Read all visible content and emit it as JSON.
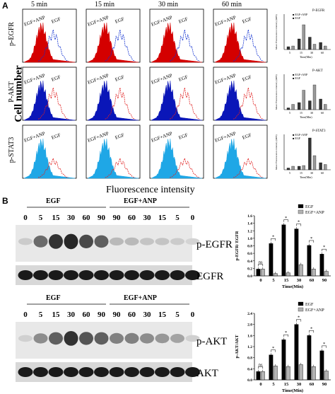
{
  "panel_labels": {
    "a": "A",
    "b": "B"
  },
  "panel_a": {
    "time_labels": [
      "5 min",
      "15 min",
      "30 min",
      "60 min"
    ],
    "row_labels": [
      "p-EGFR",
      "P-AKT",
      "p-STAT3"
    ],
    "y_axis_title": "Cell number",
    "x_axis_title": "Fluorescence intensity",
    "curve_labels": {
      "combo": "EGF+ANP",
      "egf": "EGF"
    },
    "colors": {
      "red": "#d40000",
      "blue": "#0a16b8",
      "cyan": "#1fa7e6",
      "egf_red": "#e02020",
      "egf_blue": "#1030d0"
    },
    "mini_charts": [
      {
        "title": "P-EGFR",
        "legend": [
          "EGF+ANP",
          "EGF"
        ],
        "ylabel": "Mean Fluorescence intensity (MFI)",
        "xlabel": "Time(Min)",
        "ticks": [
          "5",
          "15",
          "30",
          "60"
        ]
      },
      {
        "title": "P-AKT",
        "legend": [
          "EGF+ANP",
          "EGF"
        ],
        "ylabel": "Mean Fluorescence intensity (MFI)",
        "xlabel": "Time(Min)",
        "ticks": [
          "5",
          "15",
          "30",
          "60"
        ]
      },
      {
        "title": "P-STAT3",
        "legend": [
          "EGF+ANP",
          "EGF"
        ],
        "ylabel": "Mean Fluorescence intensity (MFI)",
        "xlabel": "Time(Min)",
        "ticks": [
          "5",
          "15",
          "30",
          "60"
        ]
      }
    ]
  },
  "panel_b": {
    "blot1": {
      "group_labels": [
        "EGF",
        "EGF+ANP"
      ],
      "lanes": [
        "0",
        "5",
        "15",
        "30",
        "60",
        "90",
        "90",
        "60",
        "30",
        "15",
        "5",
        "0"
      ],
      "row_labels": [
        "p-EGFR",
        "EGFR"
      ],
      "top_band": [
        0.12,
        0.55,
        0.8,
        0.85,
        0.7,
        0.6,
        0.2,
        0.2,
        0.15,
        0.15,
        0.12,
        0.08
      ],
      "bottom_band": [
        0.85,
        0.85,
        0.85,
        0.85,
        0.85,
        0.85,
        0.85,
        0.85,
        0.85,
        0.85,
        0.85,
        0.85
      ]
    },
    "blot2": {
      "group_labels": [
        "EGF",
        "EGF+ANP"
      ],
      "lanes": [
        "0",
        "5",
        "15",
        "30",
        "60",
        "90",
        "90",
        "60",
        "30",
        "15",
        "5",
        "0"
      ],
      "row_labels": [
        "p-AKT",
        "AKT"
      ],
      "top_band": [
        0.1,
        0.4,
        0.6,
        0.8,
        0.65,
        0.6,
        0.45,
        0.45,
        0.4,
        0.35,
        0.3,
        0.1
      ],
      "bottom_band": [
        0.85,
        0.85,
        0.85,
        0.85,
        0.85,
        0.85,
        0.85,
        0.85,
        0.85,
        0.85,
        0.85,
        0.85
      ]
    }
  },
  "chart_data": [
    {
      "type": "bar",
      "title": "",
      "ylabel": "p-EGFR/ EGFR",
      "xlabel": "Time(Min)",
      "categories": [
        "0",
        "5",
        "15",
        "30",
        "60",
        "90"
      ],
      "ylim": [
        0,
        1.6
      ],
      "yticks": [
        "0.0",
        "0.2",
        "0.4",
        "0.6",
        "0.8",
        "1.0",
        "1.2",
        "1.4",
        "1.6"
      ],
      "legend": "top-right",
      "series": [
        {
          "name": "EGF",
          "values": [
            0.18,
            0.86,
            1.36,
            1.25,
            0.81,
            0.58
          ],
          "color": "#000000"
        },
        {
          "name": "EGF+ANP",
          "values": [
            0.18,
            0.06,
            0.08,
            0.3,
            0.18,
            0.12
          ],
          "color": "#b3b3b3"
        }
      ],
      "annotations": [
        "ns",
        "*",
        "*",
        "*",
        "*",
        "*"
      ]
    },
    {
      "type": "bar",
      "title": "",
      "ylabel": "p-AKT/AKT",
      "xlabel": "Time(Min)",
      "categories": [
        "0",
        "5",
        "15",
        "30",
        "60",
        "90"
      ],
      "ylim": [
        0,
        2.4
      ],
      "yticks": [
        "0.0",
        "0.4",
        "0.8",
        "1.2",
        "1.6",
        "2.0",
        "2.4"
      ],
      "legend": "top-right",
      "series": [
        {
          "name": "EGF",
          "values": [
            0.3,
            0.9,
            1.45,
            2.0,
            1.6,
            1.05
          ],
          "color": "#000000"
        },
        {
          "name": "EGF+ANP",
          "values": [
            0.3,
            0.5,
            0.48,
            0.55,
            0.48,
            0.32
          ],
          "color": "#b3b3b3"
        }
      ],
      "annotations": [
        "ns",
        "*",
        "*",
        "*",
        "*",
        "*"
      ]
    }
  ]
}
